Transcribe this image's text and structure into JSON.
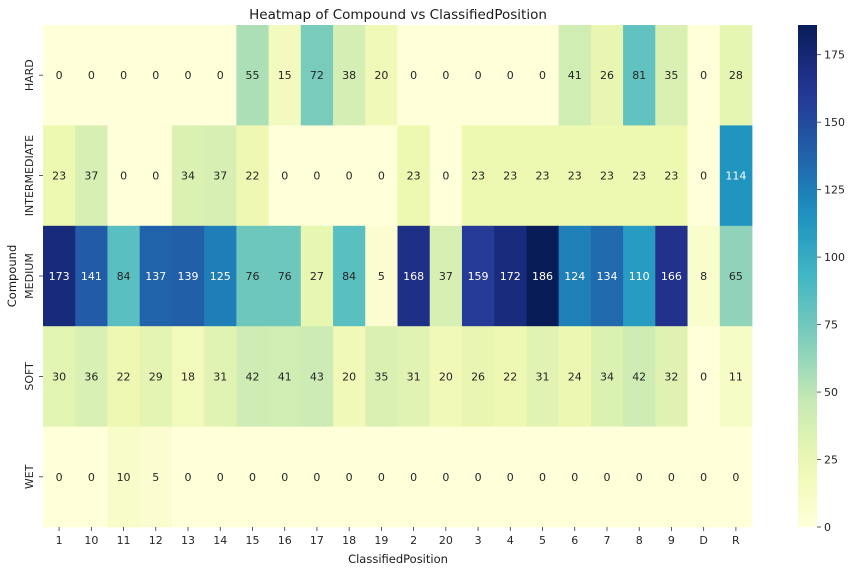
{
  "chart_data": {
    "type": "heatmap",
    "title": "Heatmap of Compound vs ClassifiedPosition",
    "xlabel": "ClassifiedPosition",
    "ylabel": "Compound",
    "x_categories": [
      "1",
      "10",
      "11",
      "12",
      "13",
      "14",
      "15",
      "16",
      "17",
      "18",
      "19",
      "2",
      "20",
      "3",
      "4",
      "5",
      "6",
      "7",
      "8",
      "9",
      "D",
      "R"
    ],
    "y_categories": [
      "HARD",
      "INTERMEDIATE",
      "MEDIUM",
      "SOFT",
      "WET"
    ],
    "values": [
      [
        0,
        0,
        0,
        0,
        0,
        0,
        55,
        15,
        72,
        38,
        20,
        0,
        0,
        0,
        0,
        0,
        41,
        26,
        81,
        35,
        0,
        28
      ],
      [
        23,
        37,
        0,
        0,
        34,
        37,
        22,
        0,
        0,
        0,
        0,
        23,
        0,
        23,
        23,
        23,
        23,
        23,
        23,
        23,
        0,
        114
      ],
      [
        173,
        141,
        84,
        137,
        139,
        125,
        76,
        76,
        27,
        84,
        5,
        168,
        37,
        159,
        172,
        186,
        124,
        134,
        110,
        166,
        8,
        65
      ],
      [
        30,
        36,
        22,
        29,
        18,
        31,
        42,
        41,
        43,
        20,
        35,
        31,
        20,
        26,
        22,
        31,
        24,
        34,
        42,
        32,
        0,
        11
      ],
      [
        0,
        0,
        10,
        5,
        0,
        0,
        0,
        0,
        0,
        0,
        0,
        0,
        0,
        0,
        0,
        0,
        0,
        0,
        0,
        0,
        0,
        0
      ]
    ],
    "colormap": "YlGnBu",
    "vmin": 0,
    "vmax": 186,
    "colorbar": {
      "ticks": [
        0,
        25,
        50,
        75,
        100,
        125,
        150,
        175
      ],
      "tick_labels": [
        "0",
        "25",
        "50",
        "75",
        "100",
        "125",
        "150",
        "175"
      ]
    },
    "annotations": "cell values shown",
    "grid": false,
    "legend_position": "right (colorbar)"
  }
}
